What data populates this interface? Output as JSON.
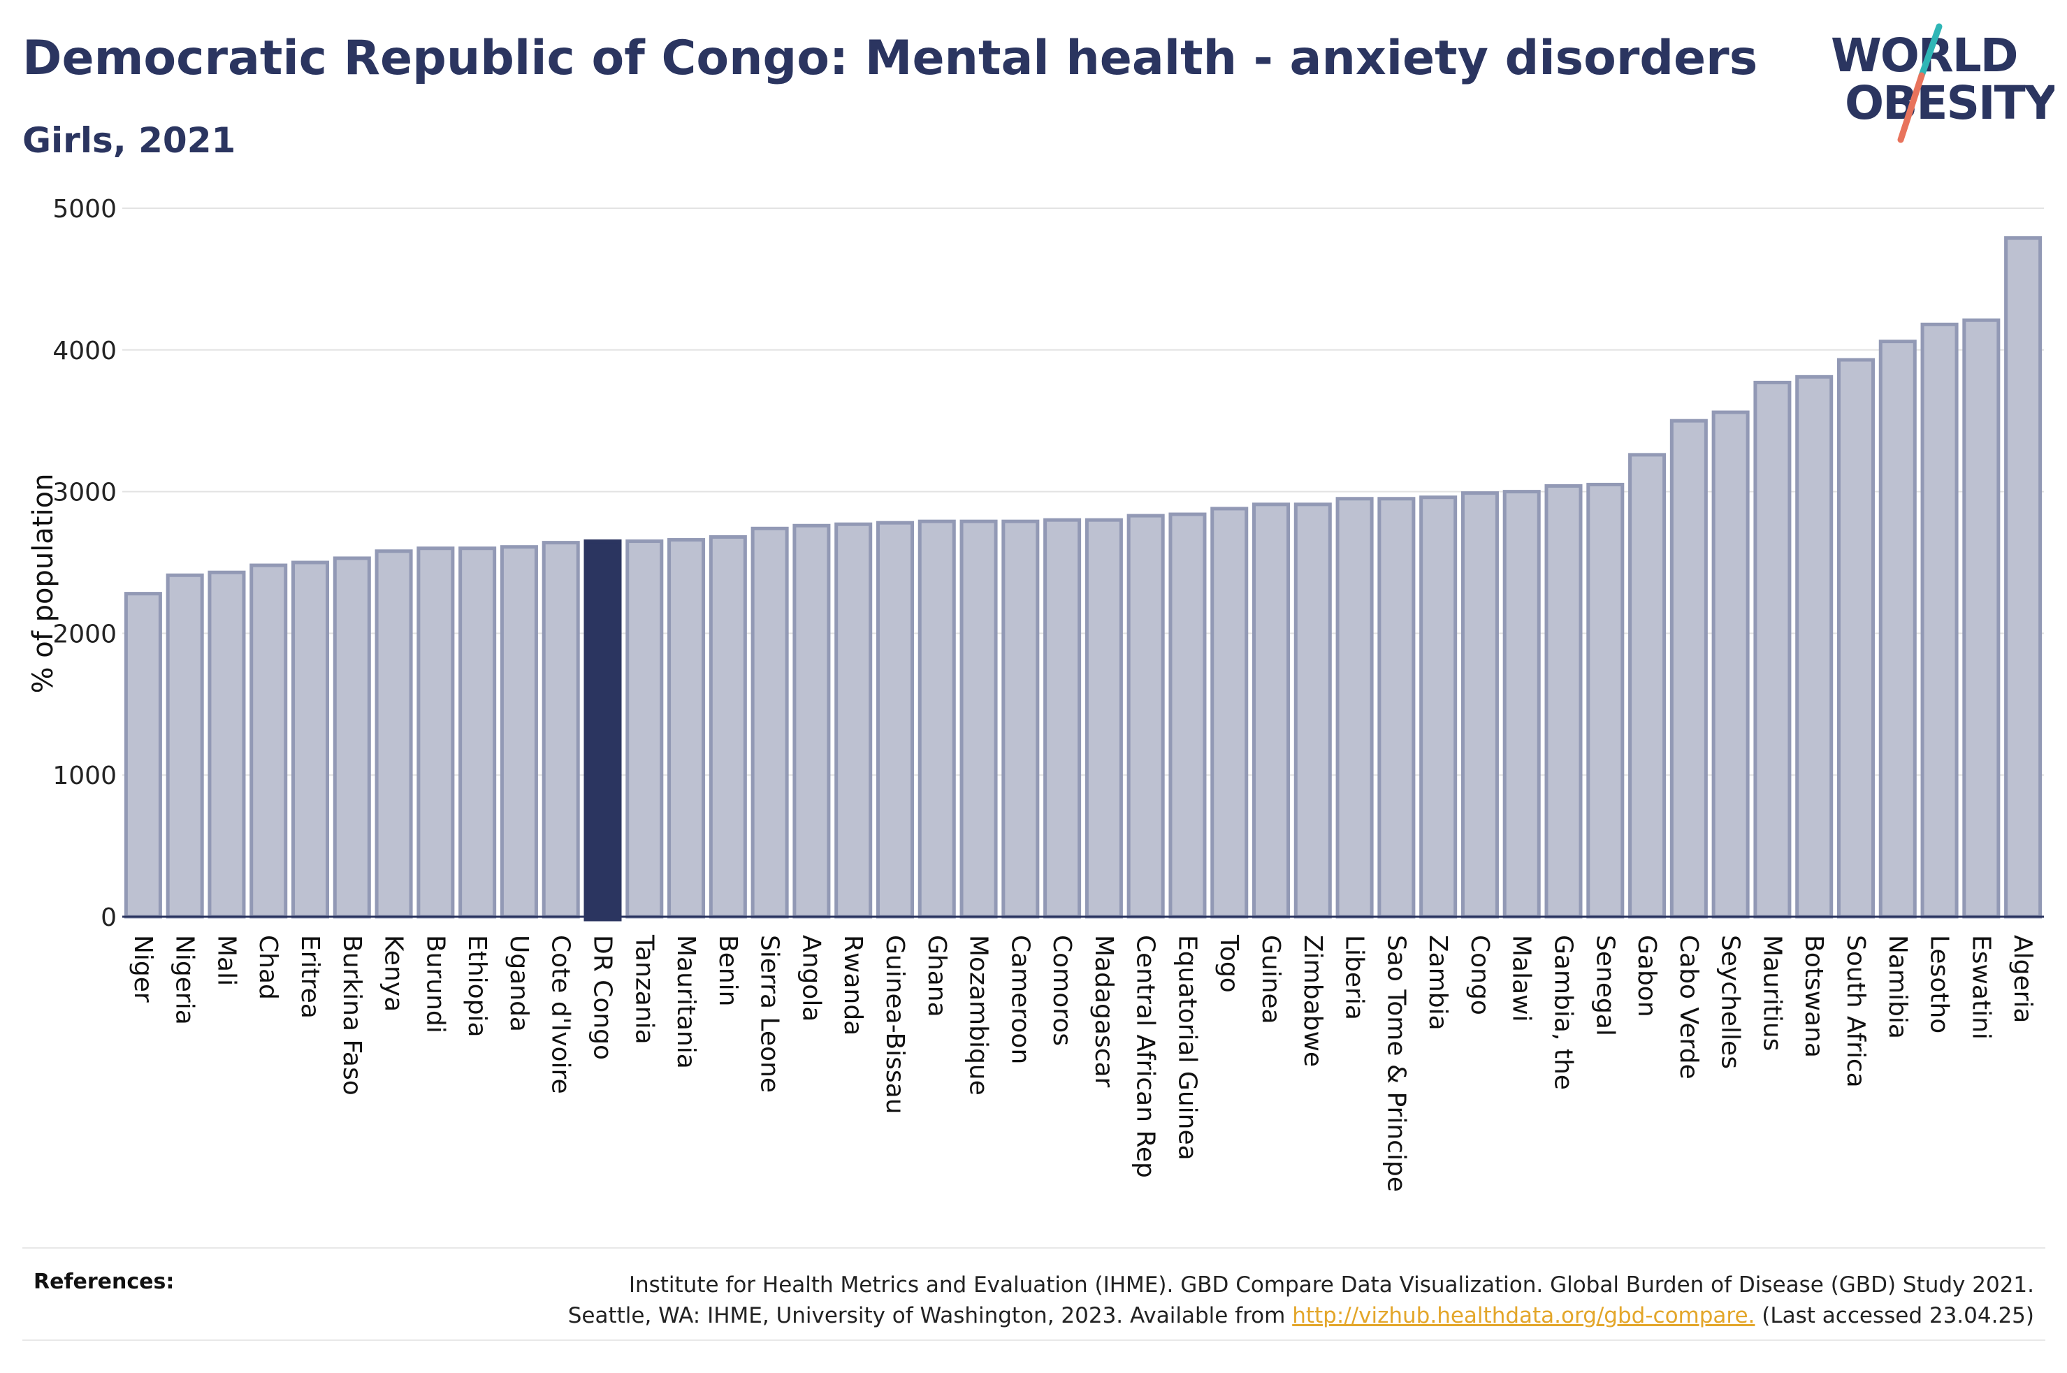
{
  "header": {
    "title": "Democratic Republic of Congo: Mental health - anxiety disorders",
    "subtitle": "Girls, 2021"
  },
  "logo": {
    "line1": "WORLD",
    "line2": "OBESITY"
  },
  "colors": {
    "bar_fill": "#bdc1d1",
    "bar_stroke": "#9299b5",
    "highlight_fill": "#2b3560",
    "grid": "#e3e3e3",
    "axis": "#2b3560",
    "logo_text": "#2b3560",
    "logo_teal": "#2fb6b6",
    "logo_coral": "#e8735c",
    "link": "#e3a62a"
  },
  "chart_data": {
    "type": "bar",
    "ylabel": "% of population",
    "ylim": [
      0,
      5000
    ],
    "yticks": [
      0,
      1000,
      2000,
      3000,
      4000,
      5000
    ],
    "grid": true,
    "highlight": "DR Congo",
    "categories": [
      "Niger",
      "Nigeria",
      "Mali",
      "Chad",
      "Eritrea",
      "Burkina Faso",
      "Kenya",
      "Burundi",
      "Ethiopia",
      "Uganda",
      "Cote d'Ivoire",
      "DR Congo",
      "Tanzania",
      "Mauritania",
      "Benin",
      "Sierra Leone",
      "Angola",
      "Rwanda",
      "Guinea-Bissau",
      "Ghana",
      "Mozambique",
      "Cameroon",
      "Comoros",
      "Madagascar",
      "Central African Rep",
      "Equatorial Guinea",
      "Togo",
      "Guinea",
      "Zimbabwe",
      "Liberia",
      "Sao Tome & Principe",
      "Zambia",
      "Congo",
      "Malawi",
      "Gambia, the",
      "Senegal",
      "Gabon",
      "Cabo Verde",
      "Seychelles",
      "Mauritius",
      "Botswana",
      "South Africa",
      "Namibia",
      "Lesotho",
      "Eswatini",
      "Algeria"
    ],
    "values": [
      2280,
      2410,
      2430,
      2480,
      2500,
      2530,
      2580,
      2600,
      2600,
      2610,
      2640,
      2650,
      2650,
      2660,
      2680,
      2740,
      2760,
      2770,
      2780,
      2790,
      2790,
      2790,
      2800,
      2800,
      2830,
      2840,
      2880,
      2910,
      2910,
      2950,
      2950,
      2960,
      2990,
      3000,
      3040,
      3050,
      3260,
      3500,
      3560,
      3770,
      3810,
      3930,
      4060,
      4180,
      4210,
      4790
    ]
  },
  "footer": {
    "label": "References:",
    "line1": "Institute for Health Metrics and Evaluation (IHME). GBD Compare Data Visualization. Global Burden of Disease (GBD) Study 2021.",
    "line2_prefix": "Seattle, WA: IHME, University of Washington, 2023. Available from ",
    "link": "http://vizhub.healthdata.org/gbd-compare.",
    "line2_suffix": " (Last accessed 23.04.25)"
  }
}
